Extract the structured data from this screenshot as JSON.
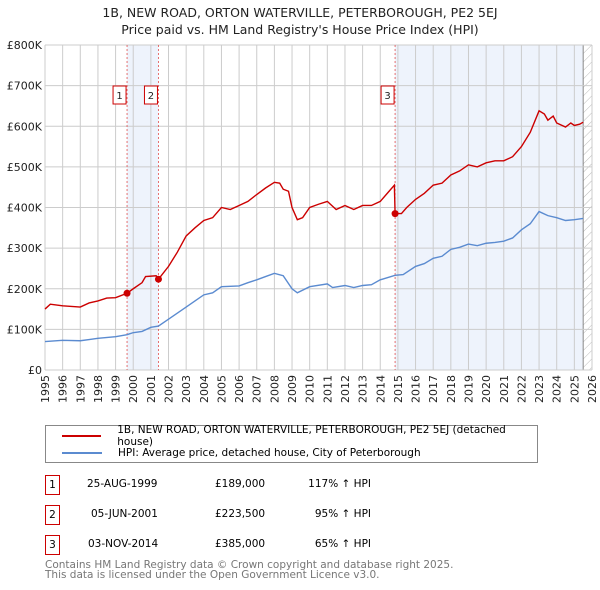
{
  "chart_data": {
    "type": "line",
    "title": "1B, NEW ROAD, ORTON WATERVILLE, PETERBOROUGH, PE2 5EJ",
    "subtitle": "Price paid vs. HM Land Registry's House Price Index (HPI)",
    "ylim": [
      0,
      800000
    ],
    "xlim": [
      1995,
      2026
    ],
    "y_ticks": [
      "£0",
      "£100K",
      "£200K",
      "£300K",
      "£400K",
      "£500K",
      "£600K",
      "£700K",
      "£800K"
    ],
    "x_ticks": [
      "1995",
      "1996",
      "1997",
      "1998",
      "1999",
      "2000",
      "2001",
      "2002",
      "2003",
      "2004",
      "2005",
      "2006",
      "2007",
      "2008",
      "2009",
      "2010",
      "2011",
      "2012",
      "2013",
      "2014",
      "2015",
      "2016",
      "2017",
      "2018",
      "2019",
      "2020",
      "2021",
      "2022",
      "2023",
      "2024",
      "2025",
      "2026"
    ],
    "colors": {
      "property": "#cc0000",
      "hpi": "#5b8bd0"
    },
    "series": [
      {
        "name": "1B, NEW ROAD, ORTON WATERVILLE, PETERBOROUGH, PE2 5EJ (detached house)",
        "color": "#cc0000",
        "points": [
          [
            1995,
            150
          ],
          [
            1995.3,
            162
          ],
          [
            1996,
            158
          ],
          [
            1997,
            155
          ],
          [
            1997.5,
            165
          ],
          [
            1998,
            170
          ],
          [
            1998.5,
            177
          ],
          [
            1999,
            178
          ],
          [
            1999.65,
            189
          ],
          [
            2000,
            200
          ],
          [
            2000.5,
            215
          ],
          [
            2000.7,
            230
          ],
          [
            2001.3,
            232
          ],
          [
            2001.43,
            223.5
          ],
          [
            2002,
            255
          ],
          [
            2002.5,
            290
          ],
          [
            2003,
            330
          ],
          [
            2003.5,
            350
          ],
          [
            2004,
            368
          ],
          [
            2004.5,
            375
          ],
          [
            2005,
            400
          ],
          [
            2005.5,
            395
          ],
          [
            2006,
            405
          ],
          [
            2006.5,
            415
          ],
          [
            2007,
            432
          ],
          [
            2007.5,
            448
          ],
          [
            2008,
            462
          ],
          [
            2008.3,
            460
          ],
          [
            2008.5,
            445
          ],
          [
            2008.8,
            440
          ],
          [
            2009,
            400
          ],
          [
            2009.3,
            370
          ],
          [
            2009.6,
            375
          ],
          [
            2010,
            400
          ],
          [
            2010.5,
            408
          ],
          [
            2011,
            415
          ],
          [
            2011.5,
            395
          ],
          [
            2012,
            405
          ],
          [
            2012.5,
            395
          ],
          [
            2013,
            405
          ],
          [
            2013.5,
            405
          ],
          [
            2014,
            415
          ],
          [
            2014.5,
            440
          ],
          [
            2014.8,
            455
          ],
          [
            2014.84,
            385
          ],
          [
            2015.2,
            385
          ],
          [
            2015.5,
            400
          ],
          [
            2016,
            420
          ],
          [
            2016.5,
            435
          ],
          [
            2017,
            455
          ],
          [
            2017.5,
            460
          ],
          [
            2018,
            480
          ],
          [
            2018.5,
            490
          ],
          [
            2019,
            505
          ],
          [
            2019.5,
            500
          ],
          [
            2020,
            510
          ],
          [
            2020.5,
            515
          ],
          [
            2021,
            515
          ],
          [
            2021.5,
            525
          ],
          [
            2022,
            550
          ],
          [
            2022.5,
            585
          ],
          [
            2023,
            638
          ],
          [
            2023.3,
            630
          ],
          [
            2023.5,
            615
          ],
          [
            2023.8,
            625
          ],
          [
            2024,
            608
          ],
          [
            2024.5,
            598
          ],
          [
            2024.8,
            608
          ],
          [
            2025,
            602
          ],
          [
            2025.3,
            605
          ],
          [
            2025.5,
            610
          ]
        ]
      },
      {
        "name": "HPI: Average price, detached house, City of Peterborough",
        "color": "#5b8bd0",
        "points": [
          [
            1995,
            70
          ],
          [
            1996,
            73
          ],
          [
            1997,
            72
          ],
          [
            1997.5,
            75
          ],
          [
            1998,
            78
          ],
          [
            1999,
            82
          ],
          [
            1999.65,
            87
          ],
          [
            2000,
            92
          ],
          [
            2000.5,
            95
          ],
          [
            2001,
            105
          ],
          [
            2001.43,
            108
          ],
          [
            2002,
            125
          ],
          [
            2003,
            155
          ],
          [
            2003.5,
            170
          ],
          [
            2004,
            185
          ],
          [
            2004.5,
            190
          ],
          [
            2005,
            205
          ],
          [
            2006,
            207
          ],
          [
            2006.5,
            215
          ],
          [
            2007,
            222
          ],
          [
            2007.5,
            230
          ],
          [
            2008,
            238
          ],
          [
            2008.5,
            232
          ],
          [
            2009,
            200
          ],
          [
            2009.3,
            190
          ],
          [
            2010,
            205
          ],
          [
            2011,
            212
          ],
          [
            2011.3,
            203
          ],
          [
            2012,
            208
          ],
          [
            2012.5,
            203
          ],
          [
            2013,
            208
          ],
          [
            2013.5,
            210
          ],
          [
            2014,
            222
          ],
          [
            2014.84,
            233
          ],
          [
            2015.3,
            235
          ],
          [
            2016,
            255
          ],
          [
            2016.5,
            262
          ],
          [
            2017,
            275
          ],
          [
            2017.5,
            280
          ],
          [
            2018,
            297
          ],
          [
            2018.5,
            302
          ],
          [
            2019,
            310
          ],
          [
            2019.5,
            306
          ],
          [
            2020,
            312
          ],
          [
            2020.5,
            314
          ],
          [
            2021,
            317
          ],
          [
            2021.5,
            325
          ],
          [
            2022,
            345
          ],
          [
            2022.5,
            360
          ],
          [
            2023,
            390
          ],
          [
            2023.5,
            380
          ],
          [
            2024,
            375
          ],
          [
            2024.5,
            368
          ],
          [
            2025,
            370
          ],
          [
            2025.5,
            373
          ]
        ]
      }
    ],
    "sales": [
      {
        "num": "1",
        "date": "25-AUG-1999",
        "x": 1999.65,
        "price": "£189,000",
        "value": 189,
        "hpi": "117% ↑ HPI"
      },
      {
        "num": "2",
        "date": "05-JUN-2001",
        "x": 2001.43,
        "price": "£223,500",
        "value": 223.5,
        "hpi": "95% ↑ HPI"
      },
      {
        "num": "3",
        "date": "03-NOV-2014",
        "x": 2014.84,
        "price": "£385,000",
        "value": 385,
        "hpi": "65% ↑ HPI"
      }
    ],
    "shaded_ranges": [
      [
        1999.65,
        2001.43
      ],
      [
        2014.84,
        2025.5
      ]
    ],
    "forecast_start": 2025.5,
    "value_unit": "thousands GBP"
  },
  "footer": {
    "line1": "Contains HM Land Registry data © Crown copyright and database right 2025.",
    "line2": "This data is licensed under the Open Government Licence v3.0."
  }
}
